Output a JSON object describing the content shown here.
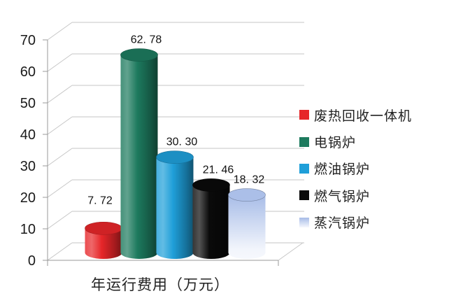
{
  "chart_data": {
    "type": "bar",
    "subtype": "3d-cylinder",
    "title": "",
    "xlabel": "年运行费用（万元）",
    "ylabel": "",
    "ylim": [
      0,
      70
    ],
    "yticks": [
      0,
      10,
      20,
      30,
      40,
      50,
      60,
      70
    ],
    "grid": true,
    "legend_position": "right",
    "background": "#ffffff",
    "grid_color": "#c6c6c6",
    "axis_color": "#9a9a9a",
    "series": [
      {
        "name": "废热回收一体机",
        "value": 7.72,
        "label": "7. 72",
        "color": "#e62629"
      },
      {
        "name": "电锅炉",
        "value": 62.78,
        "label": "62. 78",
        "color": "#1d7a5e"
      },
      {
        "name": "燃油锅炉",
        "value": 30.3,
        "label": "30. 30",
        "color": "#1f9fd9"
      },
      {
        "name": "燃气锅炉",
        "value": 21.46,
        "label": "21. 46",
        "color": "#0a0a0a"
      },
      {
        "name": "蒸汽锅炉",
        "value": 18.32,
        "label": "18. 32",
        "color": "#a7bce7",
        "gradient_to": "#f2f5fc"
      }
    ]
  }
}
